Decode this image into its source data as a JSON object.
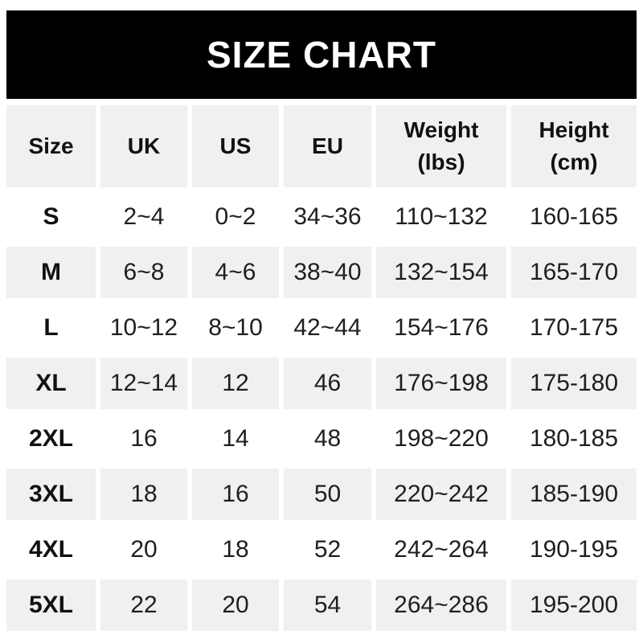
{
  "title_bar": {
    "title": "SIZE CHART",
    "bg_color": "#000000",
    "text_color": "#ffffff"
  },
  "chart_data": {
    "type": "table",
    "title": "SIZE CHART",
    "columns": [
      {
        "label": "Size",
        "sub": ""
      },
      {
        "label": "UK",
        "sub": ""
      },
      {
        "label": "US",
        "sub": ""
      },
      {
        "label": "EU",
        "sub": ""
      },
      {
        "label": "Weight",
        "sub": "(lbs)"
      },
      {
        "label": "Height",
        "sub": "(cm)"
      }
    ],
    "rows": [
      {
        "size": "S",
        "uk": "2~4",
        "us": "0~2",
        "eu": "34~36",
        "weight_lbs": "110~132",
        "height_cm": "160-165"
      },
      {
        "size": "M",
        "uk": "6~8",
        "us": "4~6",
        "eu": "38~40",
        "weight_lbs": "132~154",
        "height_cm": "165-170"
      },
      {
        "size": "L",
        "uk": "10~12",
        "us": "8~10",
        "eu": "42~44",
        "weight_lbs": "154~176",
        "height_cm": "170-175"
      },
      {
        "size": "XL",
        "uk": "12~14",
        "us": "12",
        "eu": "46",
        "weight_lbs": "176~198",
        "height_cm": "175-180"
      },
      {
        "size": "2XL",
        "uk": "16",
        "us": "14",
        "eu": "48",
        "weight_lbs": "198~220",
        "height_cm": "180-185"
      },
      {
        "size": "3XL",
        "uk": "18",
        "us": "16",
        "eu": "50",
        "weight_lbs": "220~242",
        "height_cm": "185-190"
      },
      {
        "size": "4XL",
        "uk": "20",
        "us": "18",
        "eu": "52",
        "weight_lbs": "242~264",
        "height_cm": "190-195"
      },
      {
        "size": "5XL",
        "uk": "22",
        "us": "20",
        "eu": "54",
        "weight_lbs": "264~286",
        "height_cm": "195-200"
      }
    ],
    "layout": {
      "shaded_rows": [
        "header",
        "M",
        "XL",
        "3XL",
        "5XL"
      ],
      "colors": {
        "shaded_row_bg": "#f0f0f0",
        "banner_bg": "#000000",
        "banner_text": "#ffffff",
        "cell_text": "#1f1f1f"
      }
    }
  }
}
